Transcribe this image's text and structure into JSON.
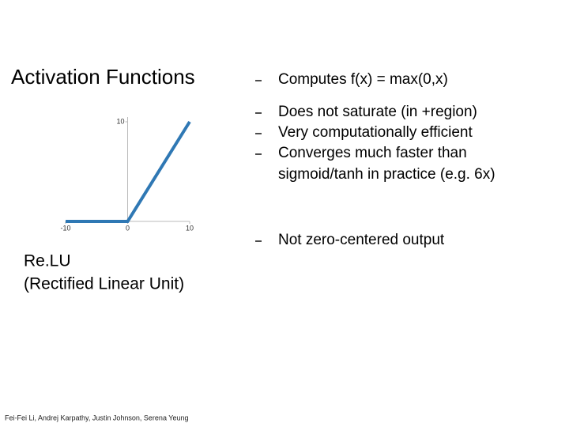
{
  "slide": {
    "title": "Activation Functions",
    "bullets": [
      "Computes f(x) = max(0,x)",
      "Does not saturate (in +region)",
      "Very computationally efficient",
      "Converges much faster than",
      "sigmoid/tanh in practice (e.g. 6x)",
      "Not zero-centered output"
    ],
    "caption": [
      "Re.LU",
      "(Rectified Linear Unit)"
    ],
    "footer": "Fei-Fei Li, Andrej Karpathy, Justin Johnson, Serena Yeung"
  },
  "chart_data": {
    "type": "line",
    "x": [
      -10,
      0,
      10
    ],
    "values": [
      0,
      0,
      10
    ],
    "color": "#2f78b4",
    "xlim": [
      -10,
      10
    ],
    "ylim": [
      0,
      10
    ],
    "xticks": [
      -10,
      0,
      10
    ],
    "yticks": [
      10
    ]
  }
}
